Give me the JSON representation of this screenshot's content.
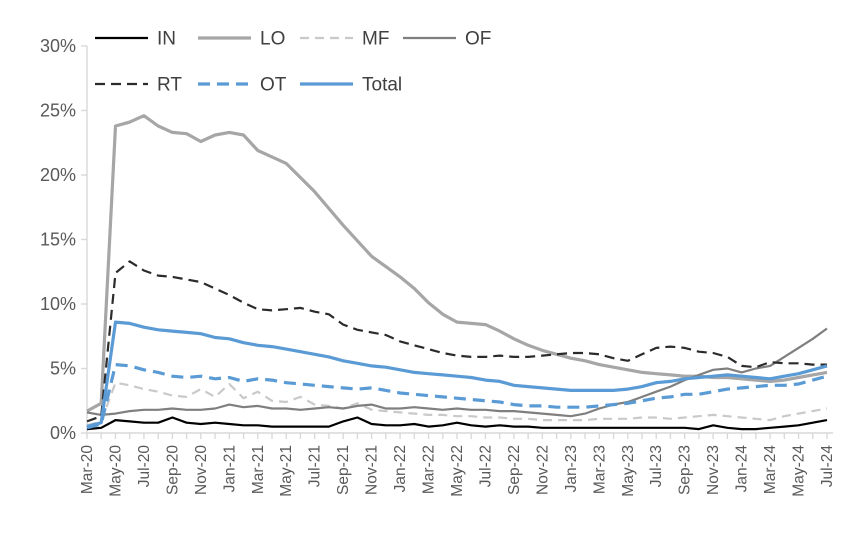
{
  "chart_data": {
    "type": "line",
    "title": "",
    "x_axis": {
      "tick_labels": [
        "Mar-20",
        "May-20",
        "Jul-20",
        "Sep-20",
        "Nov-20",
        "Jan-21",
        "Mar-21",
        "May-21",
        "Jul-21",
        "Sep-21",
        "Nov-21",
        "Jan-22",
        "Mar-22",
        "May-22",
        "Jul-22",
        "Sep-22",
        "Nov-22",
        "Jan-23",
        "Mar-23",
        "May-23",
        "Jul-23",
        "Sep-23",
        "Nov-23",
        "Jan-24",
        "Mar-24",
        "May-24",
        "Jul-24"
      ],
      "months_per_tick_label": 2,
      "minor_ticks": "monthly",
      "label_rotation_deg": -90
    },
    "y_axis": {
      "tick_labels": [
        "0%",
        "5%",
        "10%",
        "15%",
        "20%",
        "25%",
        "30%"
      ],
      "min": 0,
      "max": 30,
      "step": 5,
      "unit": "%"
    },
    "legend": {
      "position": "top",
      "rows": [
        [
          "IN",
          "LO",
          "MF",
          "OF"
        ],
        [
          "RT",
          "OT",
          "Total"
        ]
      ]
    },
    "series": [
      {
        "name": "IN",
        "color": "#000000",
        "style": "solid",
        "width": 2.2,
        "values": [
          0.3,
          0.4,
          1.0,
          0.9,
          0.8,
          0.8,
          1.2,
          0.8,
          0.7,
          0.8,
          0.7,
          0.6,
          0.6,
          0.5,
          0.5,
          0.5,
          0.5,
          0.5,
          0.9,
          1.2,
          0.7,
          0.6,
          0.6,
          0.7,
          0.5,
          0.6,
          0.8,
          0.6,
          0.5,
          0.6,
          0.5,
          0.5,
          0.4,
          0.4,
          0.4,
          0.4,
          0.4,
          0.4,
          0.4,
          0.4,
          0.4,
          0.4,
          0.4,
          0.3,
          0.6,
          0.4,
          0.3,
          0.3,
          0.4,
          0.5,
          0.6,
          0.8,
          1.0
        ]
      },
      {
        "name": "LO",
        "color": "#a6a6a6",
        "style": "solid",
        "width": 3.2,
        "values": [
          1.7,
          2.3,
          23.8,
          24.1,
          24.6,
          23.8,
          23.3,
          23.2,
          22.6,
          23.1,
          23.3,
          23.1,
          21.9,
          21.4,
          20.9,
          19.8,
          18.7,
          17.4,
          16.1,
          14.9,
          13.7,
          12.9,
          12.1,
          11.2,
          10.1,
          9.2,
          8.6,
          8.5,
          8.4,
          7.9,
          7.3,
          6.8,
          6.4,
          6.1,
          5.8,
          5.6,
          5.3,
          5.1,
          4.9,
          4.7,
          4.6,
          4.5,
          4.4,
          4.4,
          4.3,
          4.3,
          4.2,
          4.1,
          4.0,
          4.1,
          4.3,
          4.5,
          4.7
        ]
      },
      {
        "name": "MF",
        "color": "#c9c9c9",
        "style": "dashed",
        "width": 2.2,
        "values": [
          0.6,
          0.9,
          3.9,
          3.7,
          3.4,
          3.2,
          2.9,
          2.8,
          3.4,
          2.8,
          3.8,
          2.7,
          3.2,
          2.5,
          2.4,
          2.8,
          2.2,
          2.1,
          1.9,
          2.3,
          1.8,
          1.7,
          1.6,
          1.5,
          1.4,
          1.4,
          1.3,
          1.3,
          1.2,
          1.2,
          1.1,
          1.1,
          1.0,
          1.0,
          1.0,
          1.0,
          1.1,
          1.1,
          1.1,
          1.2,
          1.2,
          1.1,
          1.2,
          1.3,
          1.4,
          1.3,
          1.2,
          1.1,
          1.0,
          1.3,
          1.5,
          1.7,
          1.9
        ]
      },
      {
        "name": "OF",
        "color": "#7f7f7f",
        "style": "solid",
        "width": 2.2,
        "values": [
          1.6,
          1.4,
          1.5,
          1.7,
          1.8,
          1.8,
          1.9,
          1.8,
          1.8,
          1.9,
          2.2,
          2.0,
          2.1,
          1.9,
          1.9,
          1.8,
          1.9,
          2.0,
          1.9,
          2.1,
          2.2,
          1.9,
          1.9,
          2.0,
          1.9,
          1.8,
          1.9,
          1.8,
          1.8,
          1.7,
          1.7,
          1.6,
          1.5,
          1.4,
          1.3,
          1.5,
          1.9,
          2.2,
          2.4,
          2.8,
          3.2,
          3.6,
          4.1,
          4.5,
          4.9,
          5.0,
          4.7,
          5.0,
          5.2,
          5.9,
          6.6,
          7.3,
          8.1
        ]
      },
      {
        "name": "RT",
        "color": "#2b2b2b",
        "style": "dashed",
        "width": 2.2,
        "values": [
          0.9,
          1.3,
          12.4,
          13.3,
          12.6,
          12.2,
          12.1,
          11.9,
          11.7,
          11.2,
          10.7,
          10.1,
          9.6,
          9.5,
          9.6,
          9.7,
          9.4,
          9.2,
          8.4,
          8.0,
          7.8,
          7.6,
          7.1,
          6.8,
          6.5,
          6.2,
          6.0,
          5.9,
          5.9,
          6.0,
          5.9,
          5.9,
          6.0,
          6.1,
          6.2,
          6.2,
          6.1,
          5.8,
          5.6,
          6.1,
          6.6,
          6.7,
          6.6,
          6.3,
          6.2,
          5.9,
          5.2,
          5.1,
          5.5,
          5.4,
          5.4,
          5.3,
          5.3
        ]
      },
      {
        "name": "OT",
        "color": "#5b9bd5",
        "style": "dashed",
        "width": 3.2,
        "values": [
          0.4,
          0.7,
          5.3,
          5.2,
          4.9,
          4.7,
          4.4,
          4.3,
          4.4,
          4.2,
          4.3,
          4.0,
          4.2,
          4.1,
          3.9,
          3.8,
          3.7,
          3.6,
          3.5,
          3.4,
          3.5,
          3.3,
          3.1,
          3.0,
          2.9,
          2.8,
          2.7,
          2.6,
          2.5,
          2.4,
          2.2,
          2.1,
          2.1,
          2.0,
          2.0,
          2.0,
          2.1,
          2.2,
          2.3,
          2.5,
          2.7,
          2.8,
          3.0,
          3.0,
          3.2,
          3.4,
          3.5,
          3.6,
          3.7,
          3.7,
          3.8,
          4.1,
          4.4
        ]
      },
      {
        "name": "Total",
        "color": "#5b9bd5",
        "style": "solid",
        "width": 3.2,
        "values": [
          0.5,
          0.8,
          8.6,
          8.5,
          8.2,
          8.0,
          7.9,
          7.8,
          7.7,
          7.4,
          7.3,
          7.0,
          6.8,
          6.7,
          6.5,
          6.3,
          6.1,
          5.9,
          5.6,
          5.4,
          5.2,
          5.1,
          4.9,
          4.7,
          4.6,
          4.5,
          4.4,
          4.3,
          4.1,
          4.0,
          3.7,
          3.6,
          3.5,
          3.4,
          3.3,
          3.3,
          3.3,
          3.3,
          3.4,
          3.6,
          3.9,
          4.0,
          4.2,
          4.3,
          4.4,
          4.5,
          4.4,
          4.3,
          4.2,
          4.4,
          4.6,
          4.9,
          5.2
        ]
      }
    ],
    "colors": {
      "axis_line": "#d9d9d9",
      "tick_mark": "#bfbfbf",
      "axis_text": "#595959",
      "legend_text": "#404040",
      "background": "#ffffff",
      "accent_blue": "#5b9bd5"
    },
    "grid": "off"
  }
}
